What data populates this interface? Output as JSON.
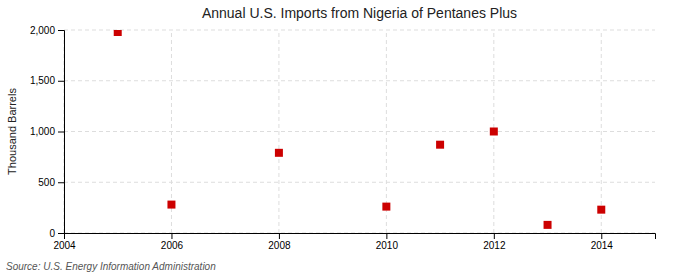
{
  "chart_data": {
    "type": "scatter",
    "title": "Annual U.S. Imports from Nigeria of Pentanes Plus",
    "ylabel": "Thousand Barrels",
    "source": "Source: U.S. Energy Information Administration",
    "x": [
      2005,
      2006,
      2008,
      2010,
      2011,
      2012,
      2013,
      2014
    ],
    "values": [
      1980,
      280,
      790,
      260,
      870,
      1000,
      80,
      230
    ],
    "color": "#cc0000",
    "marker": "square",
    "xlim": [
      2004,
      2015
    ],
    "xticks": [
      2004,
      2006,
      2008,
      2010,
      2012,
      2014
    ],
    "ylim": [
      0,
      2000
    ],
    "yticks": [
      0,
      500,
      {
        "value": 1000,
        "label": "1,000"
      },
      {
        "value": 1500,
        "label": "1,500"
      },
      {
        "value": 2000,
        "label": "2,000"
      }
    ],
    "grid": true
  }
}
